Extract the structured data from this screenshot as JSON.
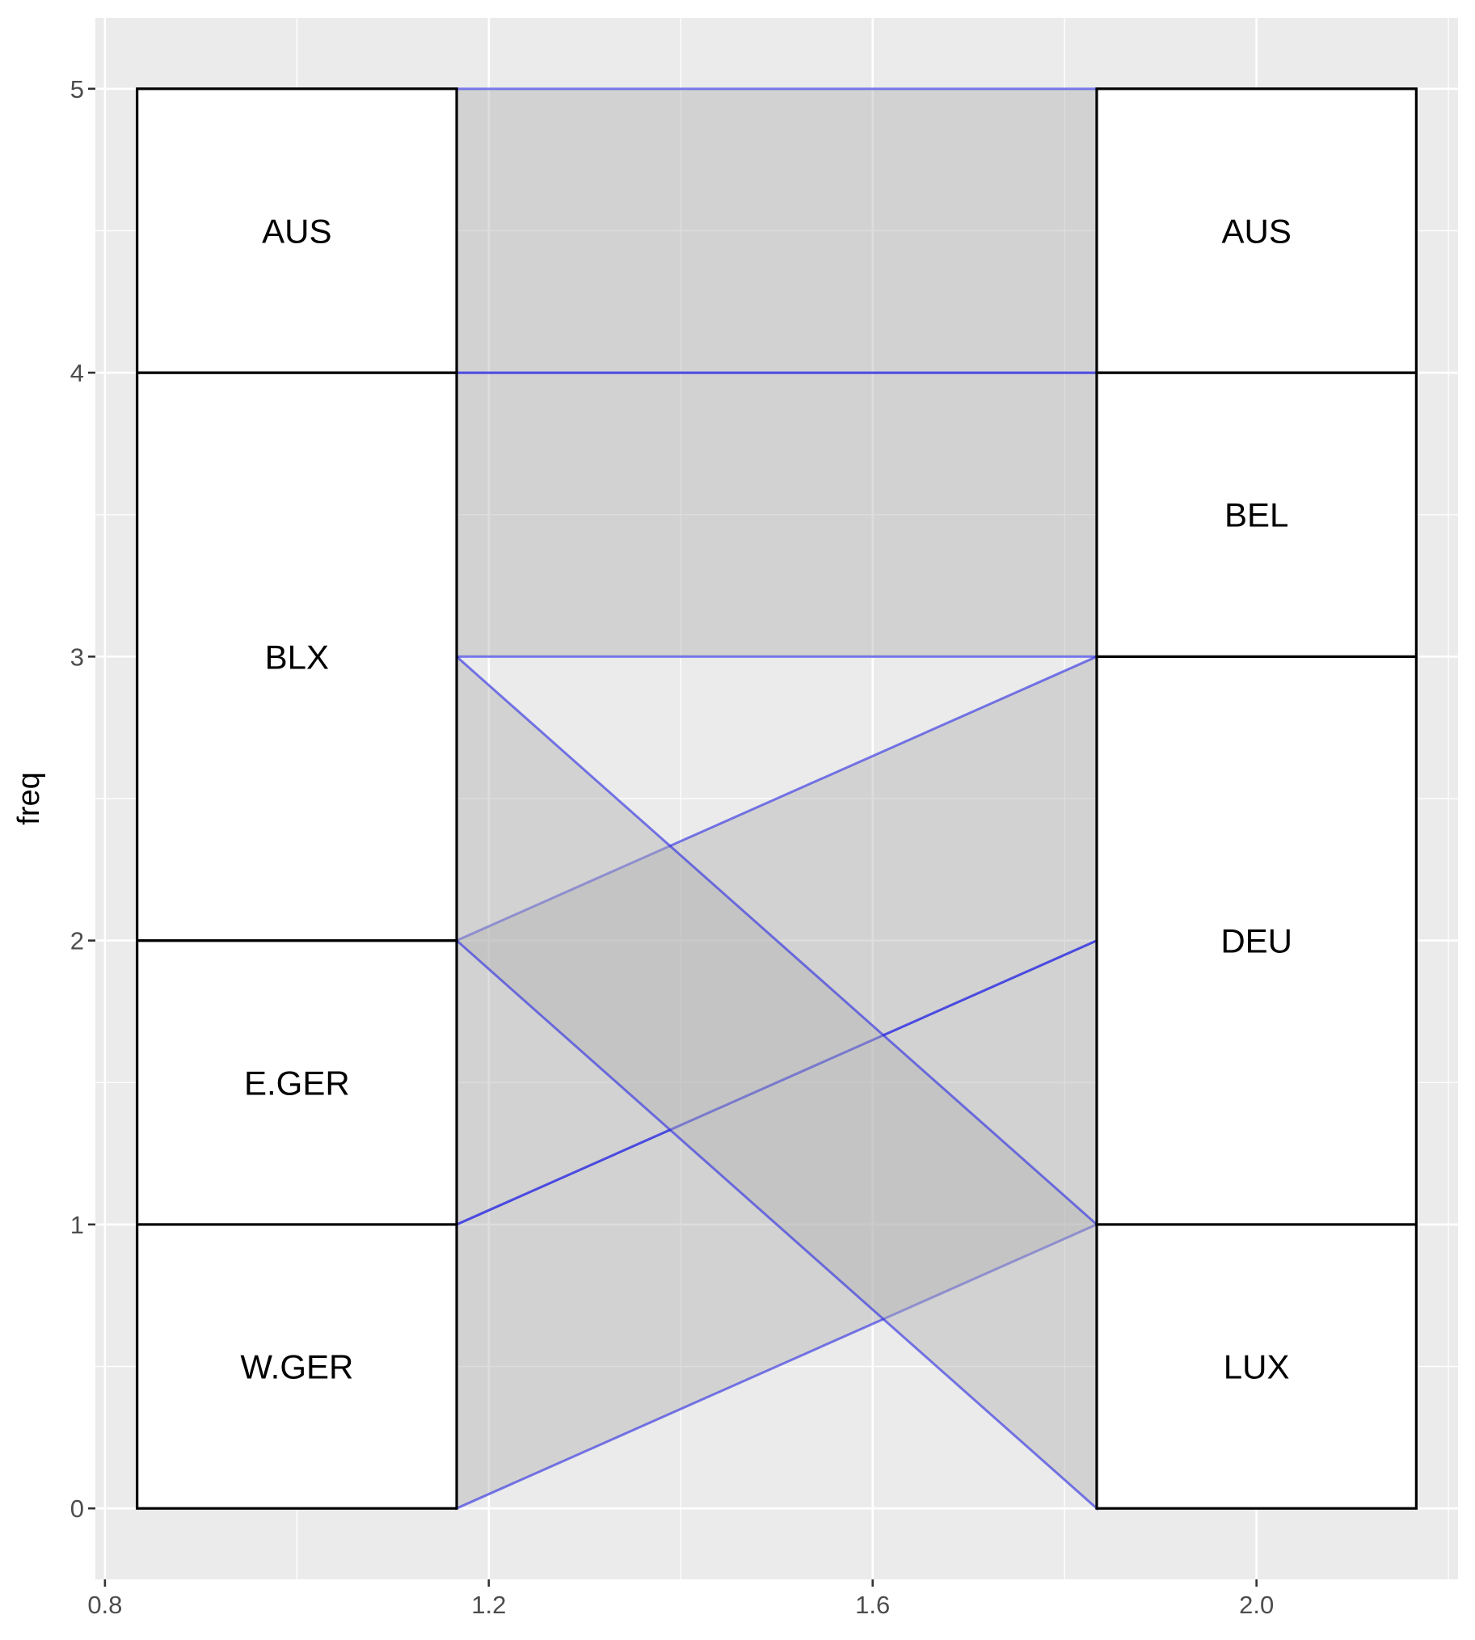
{
  "chart_data": {
    "type": "alluvial",
    "xlabel": "",
    "ylabel": "freq",
    "xlim": [
      0.79,
      2.21
    ],
    "ylim": [
      -0.25,
      5.25
    ],
    "x_ticks": [
      0.8,
      1.2,
      1.6,
      2.0
    ],
    "x_tick_labels": [
      "0.8",
      "1.2",
      "1.6",
      "2.0"
    ],
    "y_ticks": [
      0,
      1,
      2,
      3,
      4,
      5
    ],
    "y_tick_labels": [
      "0",
      "1",
      "2",
      "3",
      "4",
      "5"
    ],
    "box_width": 0.333,
    "axes": [
      {
        "x": 1,
        "strata": [
          {
            "label": "W.GER",
            "from": 0,
            "to": 1
          },
          {
            "label": "E.GER",
            "from": 1,
            "to": 2
          },
          {
            "label": "BLX",
            "from": 2,
            "to": 4
          },
          {
            "label": "AUS",
            "from": 4,
            "to": 5
          }
        ]
      },
      {
        "x": 2,
        "strata": [
          {
            "label": "LUX",
            "from": 0,
            "to": 1
          },
          {
            "label": "DEU",
            "from": 1,
            "to": 3
          },
          {
            "label": "BEL",
            "from": 3,
            "to": 4
          },
          {
            "label": "AUS",
            "from": 4,
            "to": 5
          }
        ]
      }
    ],
    "flows": [
      {
        "from": "W.GER",
        "to": "DEU",
        "freq": 1,
        "left": [
          0,
          1
        ],
        "right": [
          1,
          2
        ]
      },
      {
        "from": "E.GER",
        "to": "DEU",
        "freq": 1,
        "left": [
          1,
          2
        ],
        "right": [
          2,
          3
        ]
      },
      {
        "from": "BLX",
        "to": "LUX",
        "freq": 1,
        "left": [
          2,
          3
        ],
        "right": [
          0,
          1
        ]
      },
      {
        "from": "BLX",
        "to": "BEL",
        "freq": 1,
        "left": [
          3,
          4
        ],
        "right": [
          3,
          4
        ]
      },
      {
        "from": "AUS",
        "to": "AUS",
        "freq": 1,
        "left": [
          4,
          5
        ],
        "right": [
          4,
          5
        ]
      }
    ],
    "grid": true
  }
}
